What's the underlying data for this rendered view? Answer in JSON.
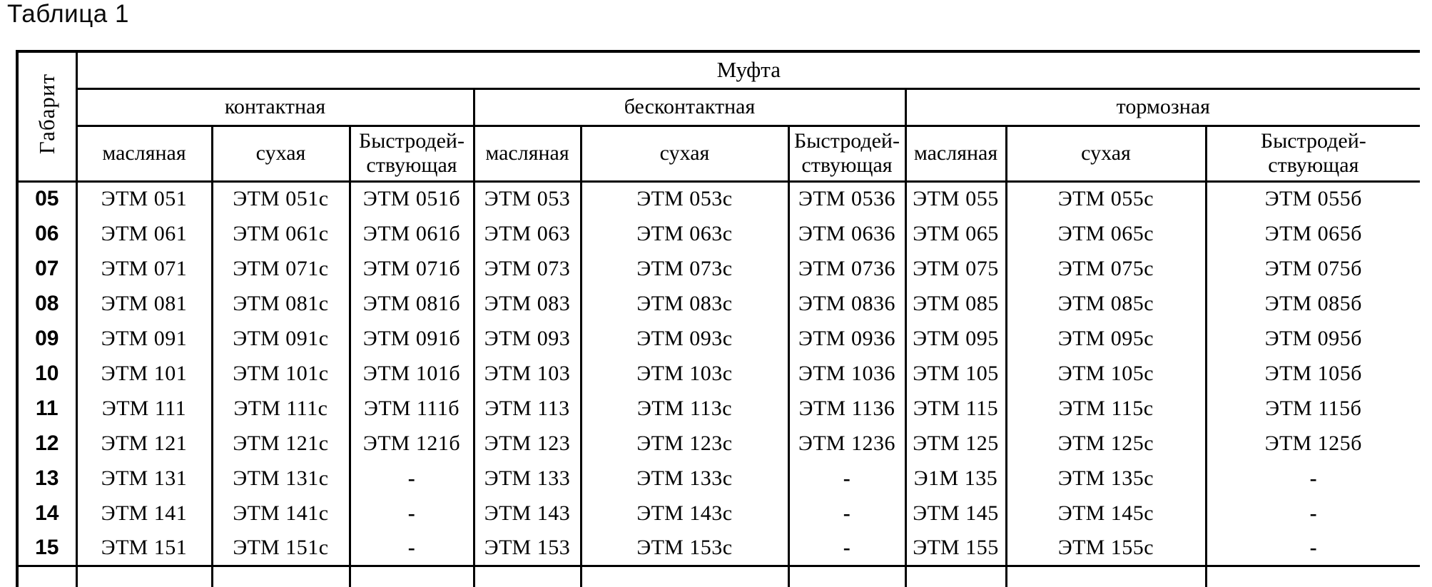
{
  "title": "Таблица 1",
  "colors": {
    "text": "#000000",
    "border": "#000000",
    "background": "#ffffff"
  },
  "table": {
    "corner_label": "Габарит",
    "top_header": "Муфта",
    "groups": [
      {
        "label": "контактная",
        "cols": [
          "масляная",
          "сухая",
          "Быстродей-\nствующая"
        ]
      },
      {
        "label": "бесконтактная",
        "cols": [
          "масляная",
          "сухая",
          "Быстродей-\nствующая"
        ]
      },
      {
        "label": "тормозная",
        "cols": [
          "масляная",
          "сухая",
          "Быстродей-\nствующая"
        ]
      }
    ],
    "rows": [
      {
        "size": "05",
        "cells": [
          "ЭТМ 051",
          "ЭТМ 051с",
          "ЭТМ 051б",
          "ЭТМ 053",
          "ЭТМ 053с",
          "ЭТМ 0536",
          "ЭТМ 055",
          "ЭТМ 055с",
          "ЭТМ 055б"
        ]
      },
      {
        "size": "06",
        "cells": [
          "ЭТМ 061",
          "ЭТМ 061с",
          "ЭТМ 061б",
          "ЭТМ 063",
          "ЭТМ 063с",
          "ЭТМ 0636",
          "ЭТМ 065",
          "ЭТМ 065с",
          "ЭТМ 065б"
        ]
      },
      {
        "size": "07",
        "cells": [
          "ЭТМ 071",
          "ЭТМ 071с",
          "ЭТМ 071б",
          "ЭТМ 073",
          "ЭТМ 073с",
          "ЭТМ 0736",
          "ЭТМ 075",
          "ЭТМ 075с",
          "ЭТМ 075б"
        ]
      },
      {
        "size": "08",
        "cells": [
          "ЭТМ 081",
          "ЭТМ 081с",
          "ЭТМ 081б",
          "ЭТМ 083",
          "ЭТМ 083с",
          "ЭТМ 0836",
          "ЭТМ 085",
          "ЭТМ 085с",
          "ЭТМ 085б"
        ]
      },
      {
        "size": "09",
        "cells": [
          "ЭТМ 091",
          "ЭТМ 091с",
          "ЭТМ 091б",
          "ЭТМ 093",
          "ЭТМ 093с",
          "ЭТМ 0936",
          "ЭТМ 095",
          "ЭТМ 095с",
          "ЭТМ 095б"
        ]
      },
      {
        "size": "10",
        "cells": [
          "ЭТМ 101",
          "ЭТМ 101с",
          "ЭТМ 101б",
          "ЭТМ 103",
          "ЭТМ 103с",
          "ЭТМ 1036",
          "ЭТМ 105",
          "ЭТМ 105с",
          "ЭТМ 105б"
        ]
      },
      {
        "size": "11",
        "cells": [
          "ЭТМ 111",
          "ЭТМ 111с",
          "ЭТМ 111б",
          "ЭТМ 113",
          "ЭТМ 113с",
          "ЭТМ 1136",
          "ЭТМ 115",
          "ЭТМ 115с",
          "ЭТМ 115б"
        ]
      },
      {
        "size": "12",
        "cells": [
          "ЭТМ 121",
          "ЭТМ 121с",
          "ЭТМ 121б",
          "ЭТМ 123",
          "ЭТМ 123с",
          "ЭТМ 1236",
          "ЭТМ 125",
          "ЭТМ 125с",
          "ЭТМ 125б"
        ]
      },
      {
        "size": "13",
        "cells": [
          "ЭТМ 131",
          "ЭТМ 131с",
          "-",
          "ЭТМ 133",
          "ЭТМ 133с",
          "-",
          "Э1М 135",
          "ЭТМ 135с",
          "-"
        ]
      },
      {
        "size": "14",
        "cells": [
          "ЭТМ 141",
          "ЭТМ 141с",
          "-",
          "ЭТМ 143",
          "ЭТМ 143с",
          "-",
          "ЭТМ 145",
          "ЭТМ 145с",
          "-"
        ]
      },
      {
        "size": "15",
        "cells": [
          "ЭТМ 151",
          "ЭТМ 151с",
          "-",
          "ЭТМ 153",
          "ЭТМ 153с",
          "-",
          "ЭТМ 155",
          "ЭТМ 155с",
          "-"
        ]
      }
    ]
  }
}
